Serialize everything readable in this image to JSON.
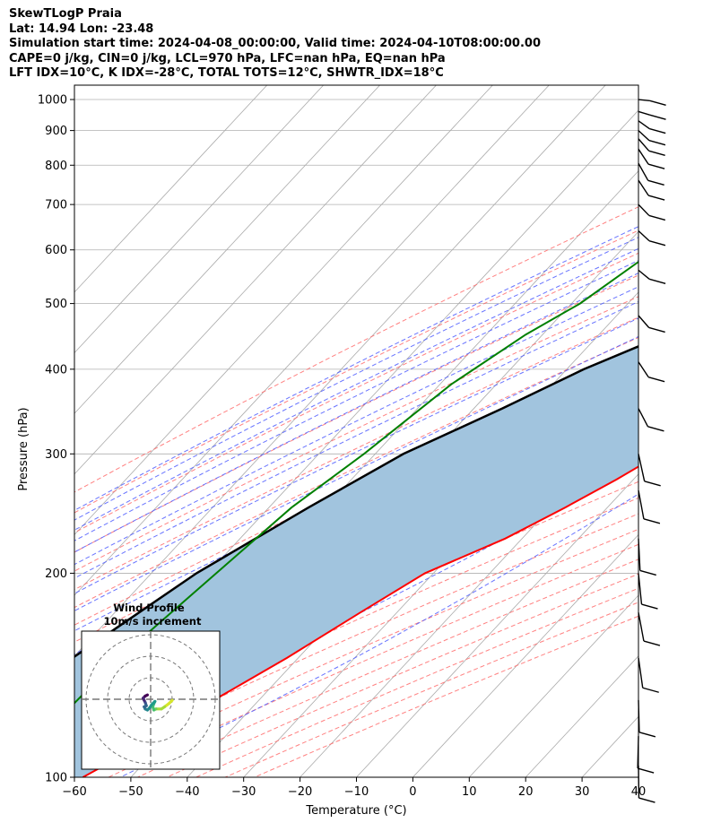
{
  "header": {
    "line1": "SkewTLogP Praia",
    "line2": "Lat: 14.94   Lon: -23.48",
    "line3": "Simulation start time: 2024-04-08_00:00:00, Valid time: 2024-04-10T08:00:00.00",
    "line4": "CAPE=0 j/kg, CIN=0 j/kg, LCL=970 hPa, LFC=nan hPa, EQ=nan hPa",
    "line5": "LFT IDX=10°C, K IDX=-28°C, TOTAL TOTS=12°C, SHWTR_IDX=18°C"
  },
  "colors": {
    "temperature": "#ff0000",
    "dewpoint": "#008000",
    "parcel": "#000000",
    "shade": "#a1c4de",
    "dry_adiabat": "#ff6b6b",
    "moist_adiabat": "#4d5cff",
    "mixing_ratio": "#9b30d9",
    "isotherm": "#aaaaaa"
  },
  "chart_data": [
    {
      "type": "line",
      "subtype": "skew-t log-p",
      "xlabel": "Temperature (°C)",
      "ylabel": "Pressure (hPa)",
      "xlim": [
        -60,
        40
      ],
      "ylim": [
        1050,
        100
      ],
      "y_scale": "log",
      "x_ticks": [
        -60,
        -50,
        -40,
        -30,
        -20,
        -10,
        0,
        10,
        20,
        30,
        40
      ],
      "y_ticks": [
        1000,
        900,
        800,
        700,
        600,
        500,
        400,
        300,
        200,
        100
      ],
      "grid": true,
      "series": [
        {
          "key": "temperature",
          "x": [
            19.5,
            19.0,
            20.5,
            21.8,
            22.5,
            22.2,
            21.5,
            20.8,
            19.5,
            17.9,
            13.0,
            7.0,
            2.0,
            -3.0,
            -6.5,
            -9.5,
            -13.0,
            -17.5,
            -23.0,
            -31.5,
            -36.5,
            -42.0,
            -48.0,
            -52.0,
            -58.5
          ],
          "y": [
            1000,
            970,
            950,
            920,
            880,
            850,
            800,
            750,
            700,
            650,
            550,
            450,
            400,
            350,
            325,
            300,
            275,
            250,
            225,
            200,
            175,
            150,
            130,
            115,
            100
          ]
        },
        {
          "key": "dewpoint",
          "x": [
            18.5,
            17.0,
            8.5,
            -5.0,
            -23.0,
            -32.0,
            -36.0,
            -41.0,
            -44.0,
            -48.5,
            -53.0,
            -58.0,
            -62.0,
            -66.0,
            -68.5,
            -71.0,
            -72.0,
            -72.5,
            -73.0
          ],
          "y": [
            1000,
            970,
            940,
            880,
            850,
            820,
            780,
            700,
            600,
            500,
            450,
            380,
            300,
            250,
            200,
            160,
            140,
            115,
            100
          ]
        },
        {
          "key": "parcel",
          "x": [
            18.0,
            17.2,
            14.5,
            12.0,
            8.5,
            5.0,
            1.5,
            -3.5,
            -8.0,
            -14.0,
            -20.0,
            -28.0,
            -37.0,
            -45.0,
            -55.0,
            -63.0,
            -72.0,
            -80.0,
            -86.0
          ],
          "y": [
            1000,
            970,
            900,
            850,
            800,
            750,
            700,
            650,
            600,
            550,
            500,
            450,
            400,
            350,
            300,
            250,
            200,
            150,
            100
          ]
        }
      ]
    },
    {
      "type": "line",
      "subtype": "hodograph",
      "title": "Wind Profile",
      "subtitle": "10m/s increment",
      "ring_step": 10,
      "x": [
        10.0,
        8.5,
        6.5,
        5.0,
        2.5,
        1.5,
        1.0,
        1.5,
        2.0,
        0.5,
        -0.5,
        -1.5,
        -2.5,
        -3.0,
        -2.0,
        -2.5,
        -3.0,
        -3.5,
        -2.5,
        -1.5
      ],
      "y": [
        -0.5,
        -2.0,
        -3.5,
        -4.5,
        -4.5,
        -5.0,
        -3.5,
        -2.0,
        -1.0,
        -2.5,
        -4.0,
        -5.0,
        -4.5,
        -3.5,
        -3.0,
        -1.5,
        -0.5,
        0.5,
        1.5,
        2.0
      ]
    }
  ]
}
